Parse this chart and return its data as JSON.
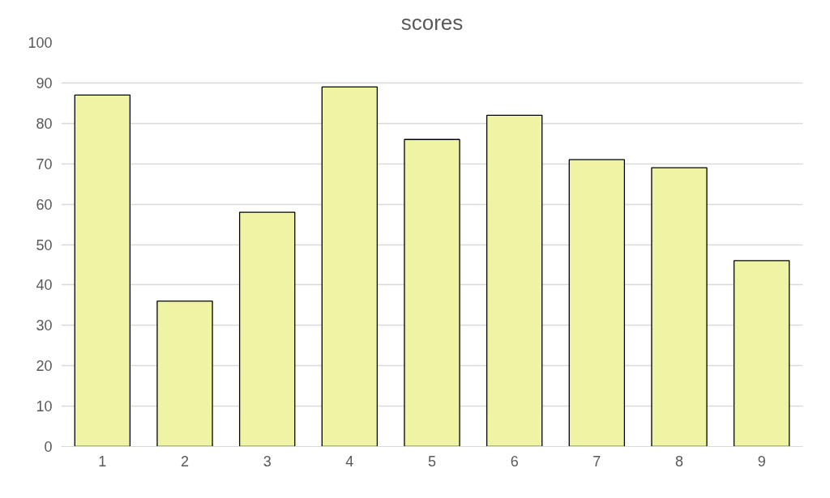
{
  "chart_data": {
    "type": "bar",
    "title": "scores",
    "categories": [
      "1",
      "2",
      "3",
      "4",
      "5",
      "6",
      "7",
      "8",
      "9"
    ],
    "values": [
      87,
      36,
      58,
      89,
      76,
      82,
      71,
      69,
      46
    ],
    "color": "#eff4a4",
    "ylim": [
      0,
      100
    ],
    "yticks": [
      0,
      10,
      20,
      30,
      40,
      50,
      60,
      70,
      80,
      90,
      100
    ],
    "grid": "y"
  }
}
